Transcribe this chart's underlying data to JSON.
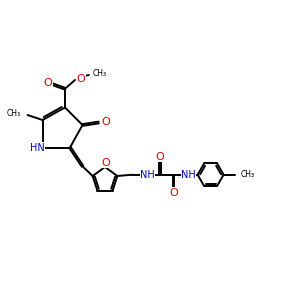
{
  "background": "#ffffff",
  "bond_color": "#000000",
  "bond_lw": 1.4,
  "atom_colors": {
    "O": "#dd0000",
    "N": "#0000cc",
    "C": "#000000"
  },
  "font_size": 7.0,
  "fig_size": [
    3.0,
    3.0
  ],
  "dpi": 100,
  "xlim": [
    0,
    12
  ],
  "ylim": [
    0,
    10
  ]
}
